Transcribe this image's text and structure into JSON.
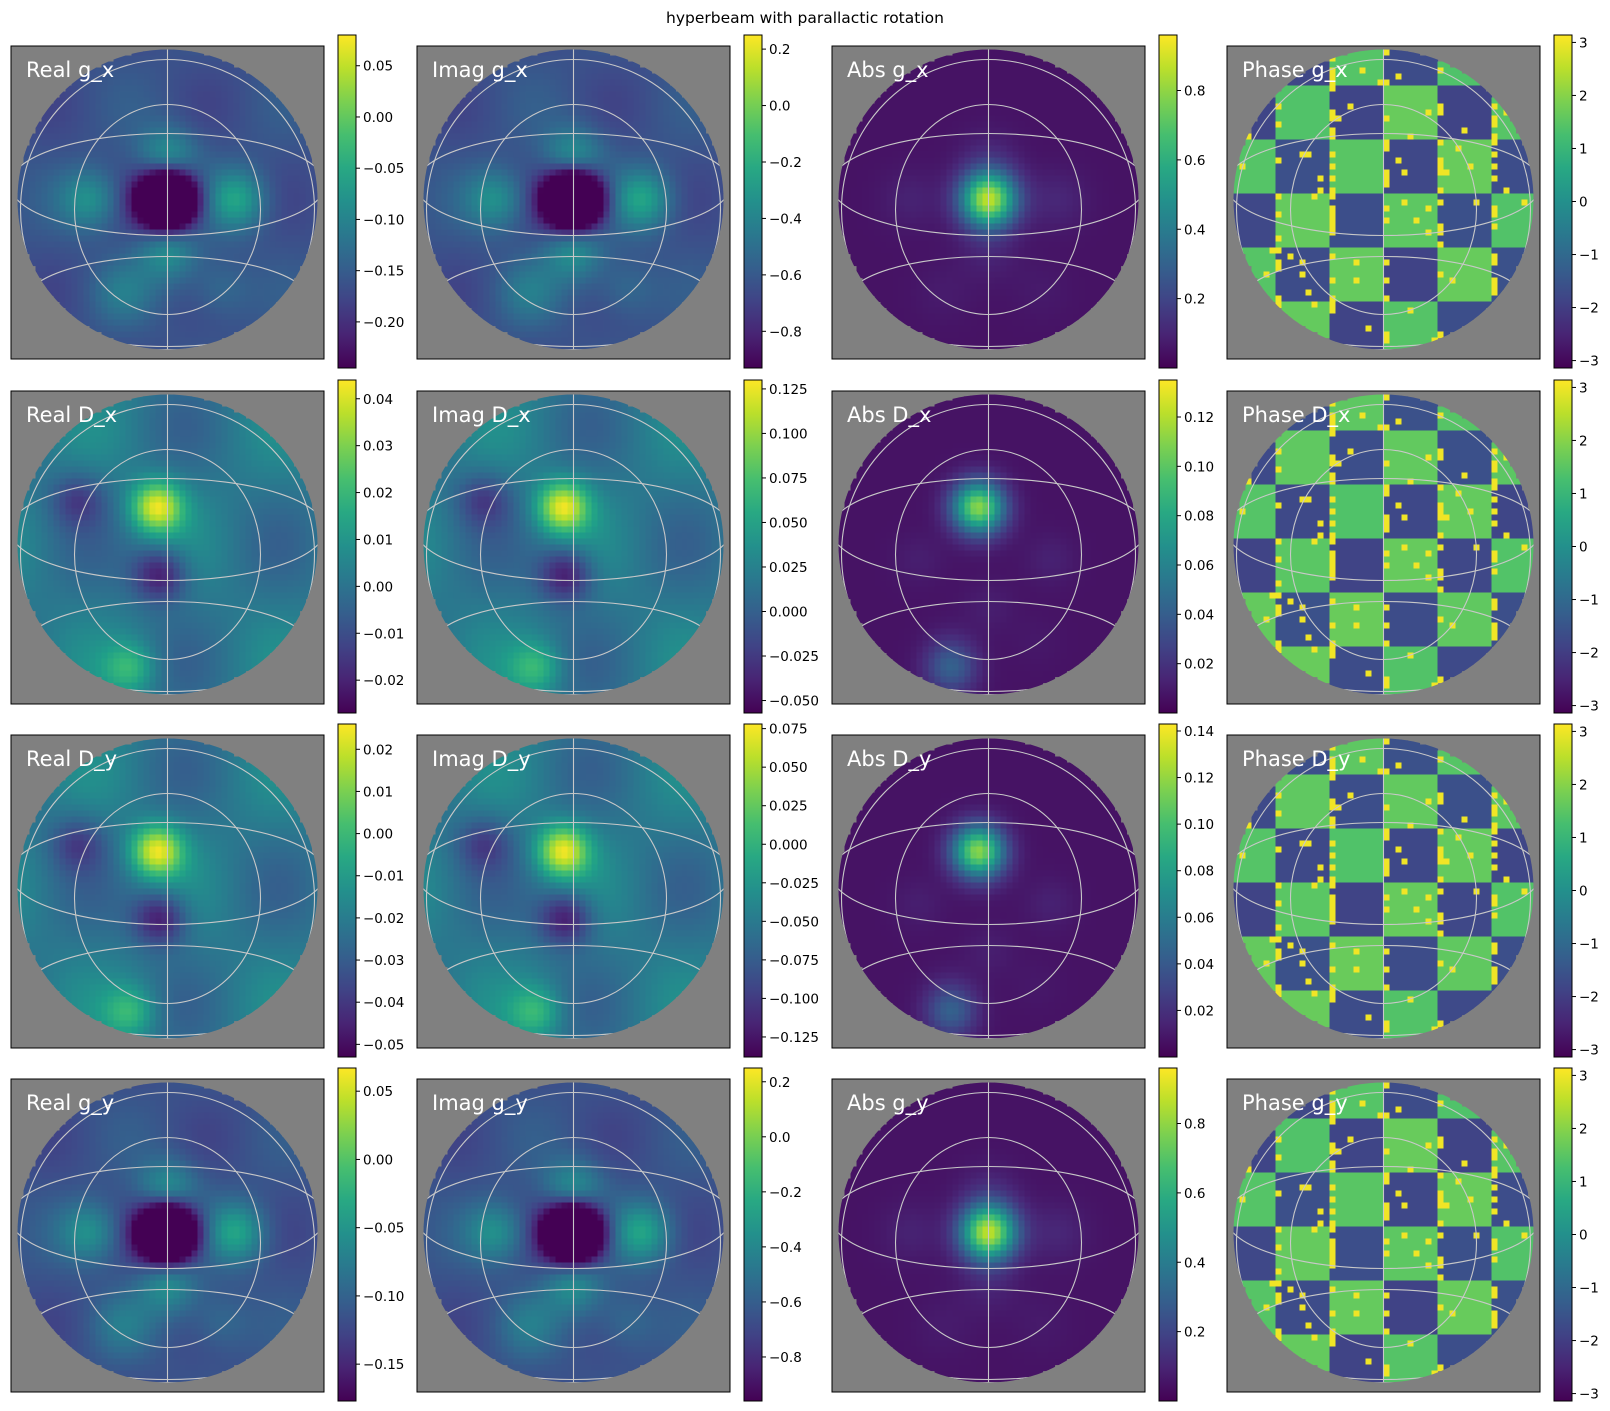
{
  "figure": {
    "title": "hyperbeam with parallactic rotation"
  },
  "colors": {
    "background": "#808080",
    "graticule": "#c8c8c8",
    "colormap": "viridis",
    "label_text": "#ffffff"
  },
  "chart_data": [
    {
      "type": "heatmap",
      "title": "Real g_x",
      "component": "real",
      "quantity": "g_x",
      "pattern": "g",
      "ticks": [
        "0.05",
        "0.00",
        "−0.05",
        "−0.10",
        "−0.15",
        "−0.20"
      ],
      "tick_values": [
        0.05,
        0.0,
        -0.05,
        -0.1,
        -0.15,
        -0.2
      ],
      "clim": [
        -0.245,
        0.08
      ]
    },
    {
      "type": "heatmap",
      "title": "Imag g_x",
      "component": "imag",
      "quantity": "g_x",
      "pattern": "g",
      "ticks": [
        "0.2",
        "0.0",
        "−0.2",
        "−0.4",
        "−0.6",
        "−0.8"
      ],
      "tick_values": [
        0.2,
        0.0,
        -0.2,
        -0.4,
        -0.6,
        -0.8
      ],
      "clim": [
        -0.93,
        0.25
      ]
    },
    {
      "type": "heatmap",
      "title": "Abs g_x",
      "component": "abs",
      "quantity": "g_x",
      "pattern": "g",
      "ticks": [
        "0.8",
        "0.6",
        "0.4",
        "0.2"
      ],
      "tick_values": [
        0.8,
        0.6,
        0.4,
        0.2
      ],
      "clim": [
        0.0,
        0.96
      ]
    },
    {
      "type": "heatmap",
      "title": "Phase g_x",
      "component": "phase",
      "quantity": "g_x",
      "pattern": "g",
      "ticks": [
        "3",
        "2",
        "1",
        "0",
        "−1",
        "−2",
        "−3"
      ],
      "tick_values": [
        3,
        2,
        1,
        0,
        -1,
        -2,
        -3
      ],
      "clim": [
        -3.14,
        3.14
      ]
    },
    {
      "type": "heatmap",
      "title": "Real D_x",
      "component": "real",
      "quantity": "D_x",
      "pattern": "d",
      "ticks": [
        "0.04",
        "0.03",
        "0.02",
        "0.01",
        "0.00",
        "−0.01",
        "−0.02"
      ],
      "tick_values": [
        0.04,
        0.03,
        0.02,
        0.01,
        0.0,
        -0.01,
        -0.02
      ],
      "clim": [
        -0.027,
        0.044
      ]
    },
    {
      "type": "heatmap",
      "title": "Imag D_x",
      "component": "imag",
      "quantity": "D_x",
      "pattern": "d",
      "ticks": [
        "0.125",
        "0.100",
        "0.075",
        "0.050",
        "0.025",
        "0.000",
        "−0.025",
        "−0.050"
      ],
      "tick_values": [
        0.125,
        0.1,
        0.075,
        0.05,
        0.025,
        0.0,
        -0.025,
        -0.05
      ],
      "clim": [
        -0.057,
        0.13
      ]
    },
    {
      "type": "heatmap",
      "title": "Abs D_x",
      "component": "abs",
      "quantity": "D_x",
      "pattern": "d",
      "ticks": [
        "0.12",
        "0.10",
        "0.08",
        "0.06",
        "0.04",
        "0.02"
      ],
      "tick_values": [
        0.12,
        0.1,
        0.08,
        0.06,
        0.04,
        0.02
      ],
      "clim": [
        0.0,
        0.135
      ]
    },
    {
      "type": "heatmap",
      "title": "Phase D_x",
      "component": "phase",
      "quantity": "D_x",
      "pattern": "d",
      "ticks": [
        "3",
        "2",
        "1",
        "0",
        "−1",
        "−2",
        "−3"
      ],
      "tick_values": [
        3,
        2,
        1,
        0,
        -1,
        -2,
        -3
      ],
      "clim": [
        -3.14,
        3.14
      ]
    },
    {
      "type": "heatmap",
      "title": "Real D_y",
      "component": "real",
      "quantity": "D_y",
      "pattern": "d",
      "ticks": [
        "0.02",
        "0.01",
        "0.00",
        "−0.01",
        "−0.02",
        "−0.03",
        "−0.04",
        "−0.05"
      ],
      "tick_values": [
        0.02,
        0.01,
        0.0,
        -0.01,
        -0.02,
        -0.03,
        -0.04,
        -0.05
      ],
      "clim": [
        -0.053,
        0.026
      ]
    },
    {
      "type": "heatmap",
      "title": "Imag D_y",
      "component": "imag",
      "quantity": "D_y",
      "pattern": "d",
      "ticks": [
        "0.075",
        "0.050",
        "0.025",
        "0.000",
        "−0.025",
        "−0.050",
        "−0.075",
        "−0.100",
        "−0.125"
      ],
      "tick_values": [
        0.075,
        0.05,
        0.025,
        0.0,
        -0.025,
        -0.05,
        -0.075,
        -0.1,
        -0.125
      ],
      "clim": [
        -0.138,
        0.078
      ]
    },
    {
      "type": "heatmap",
      "title": "Abs D_y",
      "component": "abs",
      "quantity": "D_y",
      "pattern": "d",
      "ticks": [
        "0.14",
        "0.12",
        "0.10",
        "0.08",
        "0.06",
        "0.04",
        "0.02"
      ],
      "tick_values": [
        0.14,
        0.12,
        0.1,
        0.08,
        0.06,
        0.04,
        0.02
      ],
      "clim": [
        0.0,
        0.143
      ]
    },
    {
      "type": "heatmap",
      "title": "Phase D_y",
      "component": "phase",
      "quantity": "D_y",
      "pattern": "d",
      "ticks": [
        "3",
        "2",
        "1",
        "0",
        "−1",
        "−2",
        "−3"
      ],
      "tick_values": [
        3,
        2,
        1,
        0,
        -1,
        -2,
        -3
      ],
      "clim": [
        -3.14,
        3.14
      ]
    },
    {
      "type": "heatmap",
      "title": "Real g_y",
      "component": "real",
      "quantity": "g_y",
      "pattern": "g",
      "ticks": [
        "0.05",
        "0.00",
        "−0.05",
        "−0.10",
        "−0.15"
      ],
      "tick_values": [
        0.05,
        0.0,
        -0.05,
        -0.1,
        -0.15
      ],
      "clim": [
        -0.177,
        0.067
      ]
    },
    {
      "type": "heatmap",
      "title": "Imag g_y",
      "component": "imag",
      "quantity": "g_y",
      "pattern": "g",
      "ticks": [
        "0.2",
        "0.0",
        "−0.2",
        "−0.4",
        "−0.6",
        "−0.8"
      ],
      "tick_values": [
        0.2,
        0.0,
        -0.2,
        -0.4,
        -0.6,
        -0.8
      ],
      "clim": [
        -0.96,
        0.25
      ]
    },
    {
      "type": "heatmap",
      "title": "Abs g_y",
      "component": "abs",
      "quantity": "g_y",
      "pattern": "g",
      "ticks": [
        "0.8",
        "0.6",
        "0.4",
        "0.2"
      ],
      "tick_values": [
        0.8,
        0.6,
        0.4,
        0.2
      ],
      "clim": [
        0.0,
        0.96
      ]
    },
    {
      "type": "heatmap",
      "title": "Phase g_y",
      "component": "phase",
      "quantity": "g_y",
      "pattern": "g",
      "ticks": [
        "3",
        "2",
        "1",
        "0",
        "−1",
        "−2",
        "−3"
      ],
      "tick_values": [
        3,
        2,
        1,
        0,
        -1,
        -2,
        -3
      ],
      "clim": [
        -3.14,
        3.14
      ]
    }
  ]
}
